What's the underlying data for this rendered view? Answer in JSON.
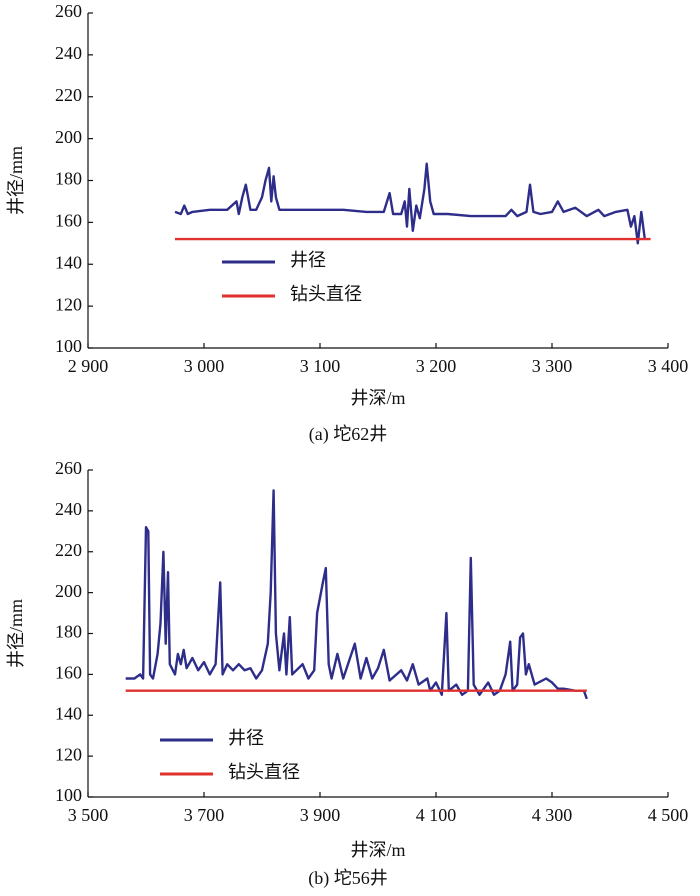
{
  "chart_data": [
    {
      "type": "line",
      "caption": "(a) 坨62井",
      "x_label": "井深/m",
      "y_label": "井径/mm",
      "xlim": [
        2900,
        3400
      ],
      "ylim": [
        100,
        260
      ],
      "xticks": [
        {
          "value": 2900,
          "label": "2 900"
        },
        {
          "value": 3000,
          "label": "3 000"
        },
        {
          "value": 3100,
          "label": "3 100"
        },
        {
          "value": 3200,
          "label": "3 200"
        },
        {
          "value": 3300,
          "label": "3 300"
        },
        {
          "value": 3400,
          "label": "3 400"
        }
      ],
      "yticks": [
        100,
        120,
        140,
        160,
        180,
        200,
        220,
        240,
        260
      ],
      "series": [
        {
          "name": "井径",
          "color": "#2e2e8a",
          "x": [
            2975,
            2980,
            2983,
            2986,
            2990,
            3005,
            3020,
            3028,
            3030,
            3033,
            3036,
            3040,
            3045,
            3050,
            3053,
            3056,
            3058,
            3060,
            3062,
            3065,
            3080,
            3100,
            3120,
            3140,
            3155,
            3160,
            3163,
            3170,
            3173,
            3175,
            3177,
            3180,
            3183,
            3186,
            3190,
            3192,
            3195,
            3198,
            3210,
            3230,
            3250,
            3260,
            3265,
            3270,
            3278,
            3281,
            3284,
            3290,
            3300,
            3305,
            3310,
            3320,
            3330,
            3340,
            3345,
            3355,
            3365,
            3368,
            3371,
            3374,
            3377,
            3380
          ],
          "values": [
            165,
            164,
            168,
            164,
            165,
            166,
            166,
            170,
            164,
            172,
            178,
            166,
            166,
            172,
            180,
            186,
            170,
            182,
            172,
            166,
            166,
            166,
            166,
            165,
            165,
            174,
            164,
            164,
            170,
            158,
            176,
            156,
            168,
            162,
            176,
            188,
            170,
            164,
            164,
            163,
            163,
            163,
            166,
            163,
            165,
            178,
            165,
            164,
            165,
            170,
            165,
            167,
            163,
            166,
            163,
            165,
            166,
            158,
            163,
            150,
            165,
            152
          ]
        },
        {
          "name": "钻头直径",
          "color": "#e0312f",
          "x": [
            2975,
            3385
          ],
          "values": [
            152,
            152
          ]
        }
      ]
    },
    {
      "type": "line",
      "caption": "(b) 坨56井",
      "x_label": "井深/m",
      "y_label": "井径/mm",
      "xlim": [
        3500,
        4500
      ],
      "ylim": [
        100,
        260
      ],
      "xticks": [
        {
          "value": 3500,
          "label": "3 500"
        },
        {
          "value": 3700,
          "label": "3 700"
        },
        {
          "value": 3900,
          "label": "3 900"
        },
        {
          "value": 4100,
          "label": "4 100"
        },
        {
          "value": 4300,
          "label": "4 300"
        },
        {
          "value": 4500,
          "label": "4 500"
        }
      ],
      "yticks": [
        100,
        120,
        140,
        160,
        180,
        200,
        220,
        240,
        260
      ],
      "series": [
        {
          "name": "井径",
          "color": "#2e2e8a",
          "x": [
            3565,
            3580,
            3590,
            3595,
            3600,
            3604,
            3607,
            3612,
            3620,
            3625,
            3630,
            3634,
            3638,
            3641,
            3650,
            3655,
            3660,
            3665,
            3670,
            3680,
            3690,
            3700,
            3710,
            3720,
            3728,
            3732,
            3740,
            3750,
            3760,
            3770,
            3780,
            3790,
            3800,
            3810,
            3815,
            3820,
            3824,
            3830,
            3838,
            3842,
            3848,
            3852,
            3870,
            3880,
            3890,
            3895,
            3905,
            3910,
            3915,
            3920,
            3930,
            3940,
            3960,
            3970,
            3980,
            3990,
            4000,
            4010,
            4020,
            4040,
            4050,
            4060,
            4070,
            4085,
            4090,
            4100,
            4110,
            4118,
            4122,
            4135,
            4145,
            4155,
            4160,
            4165,
            4175,
            4190,
            4200,
            4210,
            4220,
            4228,
            4232,
            4240,
            4245,
            4250,
            4255,
            4260,
            4270,
            4290,
            4300,
            4310,
            4320,
            4340,
            4355,
            4360
          ],
          "values": [
            158,
            158,
            160,
            158,
            232,
            230,
            160,
            158,
            170,
            185,
            220,
            175,
            210,
            165,
            160,
            170,
            165,
            172,
            163,
            168,
            162,
            166,
            160,
            165,
            205,
            160,
            165,
            162,
            165,
            162,
            163,
            158,
            162,
            175,
            200,
            250,
            180,
            162,
            180,
            160,
            188,
            160,
            165,
            158,
            162,
            190,
            205,
            212,
            165,
            158,
            170,
            158,
            175,
            158,
            168,
            158,
            163,
            172,
            157,
            162,
            157,
            165,
            155,
            158,
            152,
            156,
            150,
            190,
            152,
            155,
            150,
            152,
            217,
            155,
            150,
            156,
            150,
            152,
            160,
            176,
            152,
            155,
            178,
            180,
            160,
            165,
            155,
            158,
            156,
            153,
            153,
            152,
            152,
            148
          ]
        },
        {
          "name": "钻头直径",
          "color": "#e0312f",
          "x": [
            3565,
            4360
          ],
          "values": [
            152,
            152
          ]
        }
      ]
    }
  ]
}
